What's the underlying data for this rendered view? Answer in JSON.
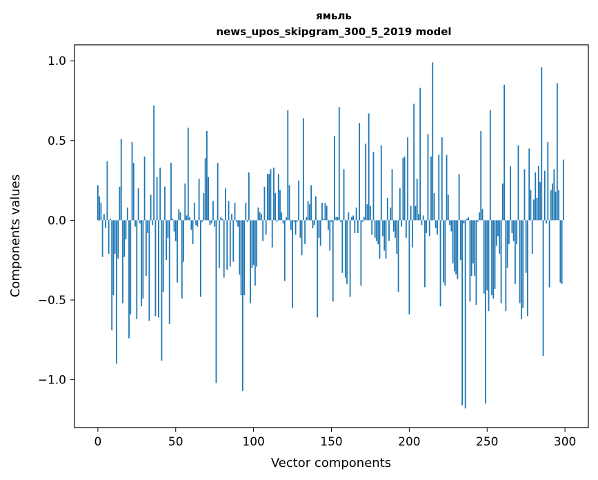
{
  "chart_data": {
    "type": "bar",
    "title": "ямьль",
    "subtitle": "news_upos_skipgram_300_5_2019 model",
    "xlabel": "Vector components",
    "ylabel": "Components values",
    "xlim": [
      -15,
      315
    ],
    "ylim": [
      -1.3,
      1.1
    ],
    "xticks": [
      0,
      50,
      100,
      150,
      200,
      250,
      300
    ],
    "yticks": [
      -1.0,
      -0.5,
      0.0,
      0.5,
      1.0
    ],
    "ytick_labels": [
      "−1.0",
      "−0.5",
      "0.0",
      "0.5",
      "1.0"
    ],
    "grid": false,
    "bar_color": "#1f77b4",
    "values": [
      0.22,
      0.15,
      0.11,
      -0.23,
      0.04,
      -0.05,
      0.37,
      -0.21,
      0.01,
      -0.69,
      -0.47,
      -0.21,
      -0.9,
      -0.24,
      0.21,
      0.51,
      -0.52,
      -0.23,
      -0.12,
      0.08,
      -0.74,
      -0.59,
      0.49,
      0.36,
      -0.04,
      -0.62,
      0.2,
      -0.02,
      -0.54,
      -0.49,
      0.4,
      -0.35,
      -0.08,
      -0.63,
      0.16,
      -0.03,
      0.72,
      -0.6,
      0.27,
      -0.61,
      0.33,
      -0.88,
      -0.45,
      0.21,
      -0.25,
      -0.11,
      -0.65,
      0.36,
      0.01,
      -0.07,
      -0.13,
      -0.39,
      0.07,
      0.05,
      -0.49,
      -0.26,
      0.23,
      0.03,
      0.58,
      0.02,
      -0.06,
      -0.15,
      0.11,
      -0.03,
      -0.04,
      0.26,
      -0.48,
      -0.01,
      0.17,
      0.39,
      0.56,
      0.27,
      -0.03,
      -0.02,
      0.12,
      -0.04,
      -1.02,
      0.36,
      -0.3,
      0.02,
      0.01,
      -0.36,
      0.2,
      -0.31,
      0.12,
      -0.29,
      0.04,
      -0.26,
      0.11,
      -0.01,
      -0.04,
      -0.34,
      -0.47,
      -1.07,
      -0.47,
      0.11,
      -0.01,
      0.3,
      -0.52,
      -0.3,
      -0.28,
      -0.41,
      -0.29,
      0.08,
      0.05,
      0.04,
      -0.13,
      0.21,
      -0.09,
      0.29,
      0.29,
      0.32,
      -0.17,
      0.33,
      0.17,
      -0.01,
      0.29,
      0.19,
      0.05,
      -0.02,
      -0.38,
      0.02,
      0.69,
      0.22,
      -0.06,
      -0.55,
      -0.01,
      -0.09,
      -0.01,
      0.25,
      -0.11,
      -0.22,
      0.64,
      -0.15,
      0.02,
      0.12,
      0.1,
      0.22,
      -0.05,
      -0.03,
      0.15,
      -0.61,
      -0.11,
      -0.16,
      0.11,
      0.01,
      0.11,
      0.09,
      -0.06,
      -0.19,
      -0.01,
      -0.51,
      0.53,
      0.02,
      0.02,
      0.71,
      -0.01,
      -0.33,
      0.32,
      -0.36,
      -0.4,
      0.05,
      -0.48,
      0.02,
      0.03,
      -0.08,
      0.08,
      -0.08,
      0.61,
      -0.41,
      -0.01,
      0.02,
      0.48,
      0.1,
      0.67,
      0.09,
      -0.09,
      0.43,
      -0.11,
      -0.13,
      -0.15,
      -0.24,
      0.47,
      -0.1,
      -0.19,
      -0.24,
      0.14,
      -0.13,
      0.08,
      0.32,
      -0.07,
      -0.11,
      -0.21,
      -0.45,
      0.2,
      -0.04,
      0.39,
      0.4,
      -0.11,
      0.52,
      -0.59,
      0.09,
      -0.17,
      0.73,
      0.09,
      0.26,
      0.04,
      0.83,
      -0.03,
      0.03,
      -0.42,
      -0.08,
      0.54,
      -0.1,
      0.4,
      0.99,
      0.17,
      -0.05,
      -0.09,
      0.41,
      -0.54,
      0.52,
      -0.39,
      -0.41,
      0.41,
      0.16,
      -0.03,
      -0.07,
      -0.27,
      -0.32,
      -0.34,
      -0.37,
      0.29,
      -0.25,
      -1.16,
      -0.02,
      -1.18,
      0.01,
      0.02,
      -0.51,
      -0.35,
      -0.27,
      -0.35,
      -0.53,
      -0.01,
      0.05,
      0.56,
      0.07,
      -0.46,
      -1.15,
      -0.44,
      -0.57,
      0.69,
      -0.47,
      -0.49,
      -0.43,
      -0.16,
      -0.1,
      -0.21,
      -0.52,
      0.23,
      0.85,
      -0.57,
      -0.3,
      -0.15,
      0.34,
      -0.08,
      -0.13,
      -0.4,
      -0.15,
      0.47,
      -0.52,
      -0.62,
      -0.55,
      0.32,
      -0.33,
      -0.6,
      0.45,
      0.19,
      -0.21,
      0.13,
      0.3,
      0.14,
      0.34,
      0.24,
      0.96,
      -0.85,
      0.31,
      -0.02,
      0.49,
      -0.42,
      0.19,
      0.23,
      0.32,
      0.18,
      0.86,
      0.19,
      -0.39,
      -0.4,
      0.38
    ]
  }
}
